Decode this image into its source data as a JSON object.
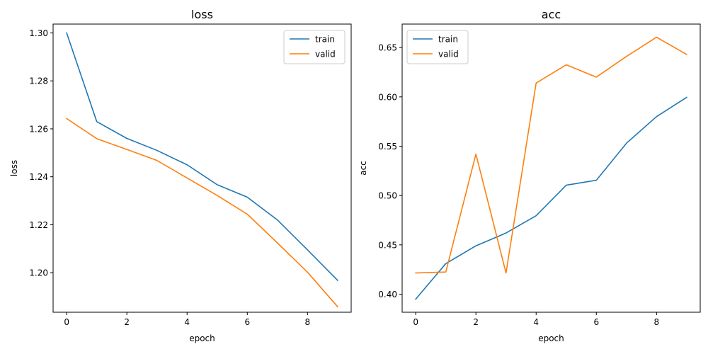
{
  "chart_data": [
    {
      "type": "line",
      "title": "loss",
      "xlabel": "epoch",
      "ylabel": "loss",
      "x": [
        0,
        1,
        2,
        3,
        4,
        5,
        6,
        7,
        8,
        9
      ],
      "xlim": [
        -0.45,
        9.45
      ],
      "ylim": [
        1.1835,
        1.3037
      ],
      "xticks": [
        0,
        2,
        4,
        6,
        8
      ],
      "xtick_labels": [
        "0",
        "2",
        "4",
        "6",
        "8"
      ],
      "yticks": [
        1.2,
        1.22,
        1.24,
        1.26,
        1.28,
        1.3
      ],
      "ytick_labels": [
        "1.20",
        "1.22",
        "1.24",
        "1.26",
        "1.28",
        "1.30"
      ],
      "grid": false,
      "legend_position": "top-right",
      "series": [
        {
          "name": "train",
          "color": "#1f77b4",
          "values": [
            1.3,
            1.263,
            1.256,
            1.251,
            1.245,
            1.2367,
            1.2315,
            1.222,
            1.2095,
            1.1968
          ]
        },
        {
          "name": "valid",
          "color": "#ff7f0e",
          "values": [
            1.2643,
            1.2559,
            1.2514,
            1.2468,
            1.2395,
            1.2322,
            1.2244,
            1.2124,
            1.2002,
            1.1858
          ]
        }
      ]
    },
    {
      "type": "line",
      "title": "acc",
      "xlabel": "epoch",
      "ylabel": "acc",
      "x": [
        0,
        1,
        2,
        3,
        4,
        5,
        6,
        7,
        8,
        9
      ],
      "xlim": [
        -0.45,
        9.45
      ],
      "ylim": [
        0.3817,
        0.6738
      ],
      "xticks": [
        0,
        2,
        4,
        6,
        8
      ],
      "xtick_labels": [
        "0",
        "2",
        "4",
        "6",
        "8"
      ],
      "yticks": [
        0.4,
        0.45,
        0.5,
        0.55,
        0.6,
        0.65
      ],
      "ytick_labels": [
        "0.40",
        "0.45",
        "0.50",
        "0.55",
        "0.60",
        "0.65"
      ],
      "grid": false,
      "legend_position": "top-left",
      "series": [
        {
          "name": "train",
          "color": "#1f77b4",
          "values": [
            0.395,
            0.431,
            0.449,
            0.462,
            0.4795,
            0.5105,
            0.5155,
            0.553,
            0.58,
            0.5995
          ]
        },
        {
          "name": "valid",
          "color": "#ff7f0e",
          "values": [
            0.4215,
            0.4225,
            0.542,
            0.4215,
            0.614,
            0.6325,
            0.62,
            0.641,
            0.6605,
            0.643
          ]
        }
      ]
    }
  ]
}
